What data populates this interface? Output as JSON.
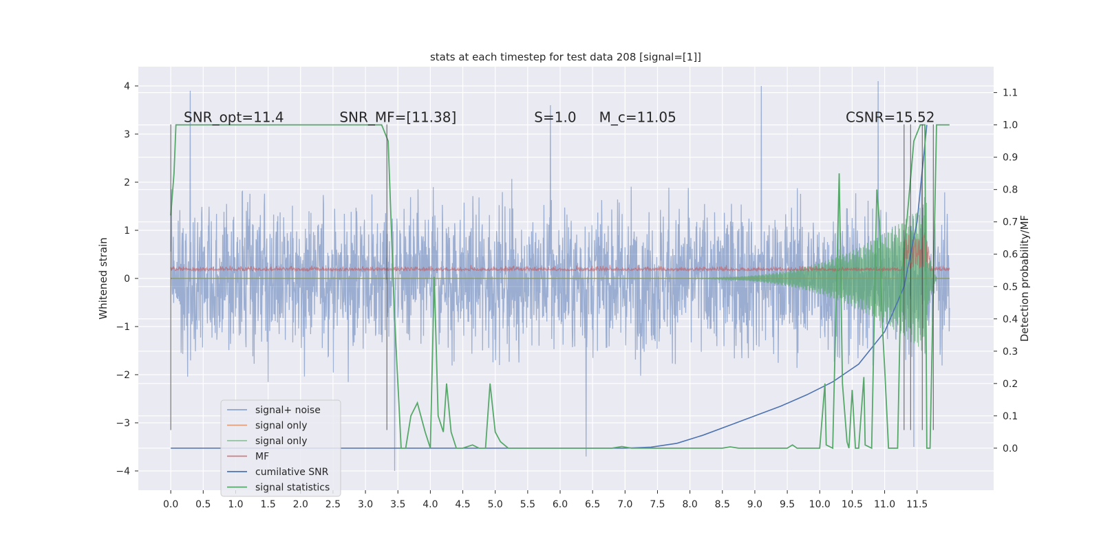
{
  "chart_data": {
    "type": "line",
    "title": "stats at each timestep for test data 208 [signal=[1]]",
    "xlabel": "",
    "ylabel": "Whitened strain",
    "ylabel_right": "Detection probability/MF",
    "xlim": [
      -0.5,
      12.68
    ],
    "ylim": [
      -4.4,
      4.4
    ],
    "ylim_right": [
      -0.13,
      1.18
    ],
    "x_ticks": [
      0.0,
      0.5,
      1.0,
      1.5,
      2.0,
      2.5,
      3.0,
      3.5,
      4.0,
      4.5,
      5.0,
      5.5,
      6.0,
      6.5,
      7.0,
      7.5,
      8.0,
      8.5,
      9.0,
      9.5,
      10.0,
      10.5,
      11.0,
      11.5
    ],
    "x_tick_labels": [
      "0.0",
      "0.5",
      "1.0",
      "1.5",
      "2.0",
      "2.5",
      "3.0",
      "3.5",
      "4.0",
      "4.5",
      "5.0",
      "5.5",
      "6.0",
      "6.5",
      "7.0",
      "7.5",
      "8.0",
      "8.5",
      "9.0",
      "9.5",
      "10.0",
      "10.5",
      "11.0",
      "11.5"
    ],
    "y_ticks": [
      -4,
      -3,
      -2,
      -1,
      0,
      1,
      2,
      3,
      4
    ],
    "y_tick_labels": [
      "−4",
      "−3",
      "−2",
      "−1",
      "0",
      "1",
      "2",
      "3",
      "4"
    ],
    "y_ticks_right": [
      0.0,
      0.1,
      0.2,
      0.3,
      0.4,
      0.5,
      0.6,
      0.7,
      0.8,
      0.9,
      1.0,
      1.1
    ],
    "y_tick_labels_right": [
      "0.0",
      "0.1",
      "0.2",
      "0.3",
      "0.4",
      "0.5",
      "0.6",
      "0.7",
      "0.8",
      "0.9",
      "1.0",
      "1.1"
    ],
    "grid": true,
    "legend_position": "lower-left",
    "annotations": [
      {
        "text": "SNR_opt=11.4",
        "x": 0.2,
        "y": 3.25
      },
      {
        "text": "SNR_MF=[11.38]",
        "x": 2.6,
        "y": 3.25
      },
      {
        "text": "S=1.0",
        "x": 5.6,
        "y": 3.25
      },
      {
        "text": "M_c=11.05",
        "x": 6.6,
        "y": 3.25
      },
      {
        "text": "CSNR=15.52",
        "x": 10.4,
        "y": 3.25
      }
    ],
    "vertical_lines": [
      0.0,
      3.33,
      11.3,
      11.4,
      11.58,
      11.75
    ],
    "series": [
      {
        "name": "signal+ noise",
        "color": "#4c72b0",
        "axis": "left",
        "t_range": [
          0.0,
          12.0
        ],
        "amplitude": 1.4,
        "peaks": [
          [
            0.3,
            3.9
          ],
          [
            5.85,
            3.6
          ],
          [
            9.1,
            4.0
          ],
          [
            10.9,
            4.1
          ],
          [
            3.45,
            -4.0
          ],
          [
            6.4,
            -3.7
          ],
          [
            11.45,
            -3.5
          ]
        ]
      },
      {
        "name": "signal only",
        "color": "#dd8452",
        "axis": "left",
        "t_range": [
          0.0,
          12.0
        ],
        "amplitude": 0.02
      },
      {
        "name": "signal only",
        "color": "#55a868",
        "axis": "left",
        "t_range": [
          0.0,
          12.0
        ],
        "chirp_start": 7.6,
        "chirp_peak_t": 11.65,
        "chirp_peak_amp": 1.6
      },
      {
        "name": "MF",
        "color": "#c44e52",
        "axis": "left",
        "t_range": [
          0.0,
          12.0
        ],
        "mean": 0.16,
        "amplitude": 0.12
      },
      {
        "name": "cumilative SNR",
        "color": "#4c72b0",
        "axis": "right",
        "x": [
          0.0,
          1.0,
          2.0,
          3.0,
          4.0,
          5.0,
          6.0,
          7.0,
          7.4,
          7.8,
          8.2,
          8.6,
          9.0,
          9.4,
          9.8,
          10.2,
          10.6,
          11.0,
          11.3,
          11.5,
          11.65
        ],
        "y": [
          0.0,
          0.0,
          0.0,
          0.0,
          0.0,
          0.0,
          0.0,
          0.0,
          0.003,
          0.015,
          0.04,
          0.07,
          0.1,
          0.13,
          0.165,
          0.205,
          0.26,
          0.36,
          0.5,
          0.7,
          1.0
        ]
      },
      {
        "name": "signal statistics",
        "color": "#55a868",
        "axis": "right",
        "x": [
          0.0,
          0.05,
          0.08,
          0.15,
          1.0,
          2.0,
          3.0,
          3.25,
          3.35,
          3.45,
          3.55,
          3.62,
          3.7,
          3.8,
          3.92,
          4.0,
          4.06,
          4.12,
          4.2,
          4.25,
          4.32,
          4.4,
          4.5,
          4.65,
          4.75,
          4.85,
          4.92,
          5.0,
          5.08,
          5.2,
          5.3,
          6.0,
          6.8,
          6.95,
          7.1,
          8.0,
          8.5,
          8.62,
          8.75,
          9.5,
          9.58,
          9.65,
          10.0,
          10.08,
          10.1,
          10.2,
          10.3,
          10.35,
          10.42,
          10.45,
          10.5,
          10.55,
          10.6,
          10.68,
          10.7,
          10.8,
          10.88,
          10.92,
          10.96,
          11.0,
          11.06,
          11.1,
          11.2,
          11.25,
          11.35,
          11.45,
          11.55,
          11.62,
          11.65,
          11.7,
          11.8,
          11.9,
          12.0
        ],
        "y": [
          0.72,
          0.85,
          1.0,
          1.0,
          1.0,
          1.0,
          1.0,
          1.0,
          0.95,
          0.4,
          0.0,
          0.0,
          0.1,
          0.14,
          0.05,
          0.0,
          0.53,
          0.1,
          0.05,
          0.2,
          0.05,
          0.0,
          0.0,
          0.01,
          0.0,
          0.0,
          0.2,
          0.05,
          0.02,
          0.0,
          0.0,
          0.0,
          0.0,
          0.005,
          0.0,
          0.0,
          0.0,
          0.004,
          0.0,
          0.0,
          0.01,
          0.0,
          0.0,
          0.2,
          0.01,
          0.0,
          0.85,
          0.2,
          0.02,
          0.0,
          0.18,
          0.0,
          0.0,
          0.22,
          0.01,
          0.0,
          0.8,
          0.7,
          0.4,
          0.25,
          0.0,
          0.0,
          0.0,
          0.5,
          0.72,
          0.95,
          1.0,
          1.0,
          0.0,
          0.0,
          1.0,
          1.0,
          1.0
        ]
      }
    ]
  }
}
